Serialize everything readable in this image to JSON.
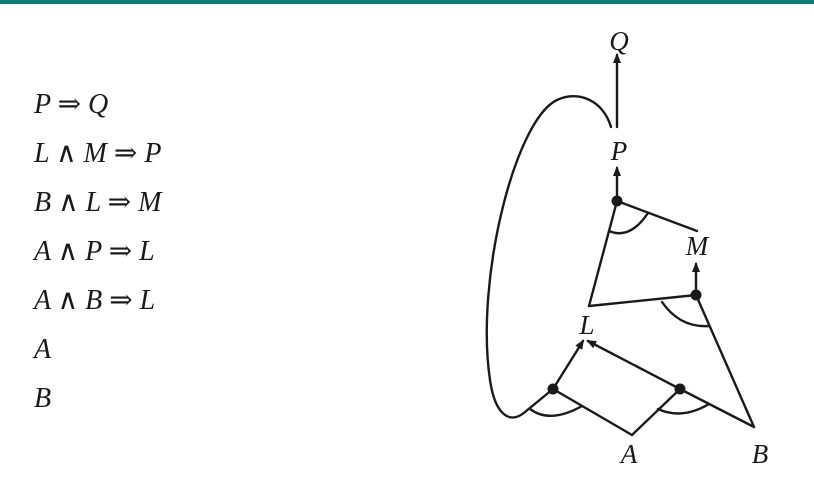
{
  "colors": {
    "top_bar": "#0b7a76",
    "ink": "#1a1a1a",
    "background": "#ffffff"
  },
  "rules": [
    "P ⇒ Q",
    "L ∧ M ⇒ P",
    "B ∧ L ⇒ M",
    "A ∧ P ⇒ L",
    "A ∧ B ⇒ L",
    "A",
    "B"
  ],
  "graph": {
    "nodes": {
      "Q": "Q",
      "P": "P",
      "M": "M",
      "L": "L",
      "A": "A",
      "B": "B"
    }
  }
}
